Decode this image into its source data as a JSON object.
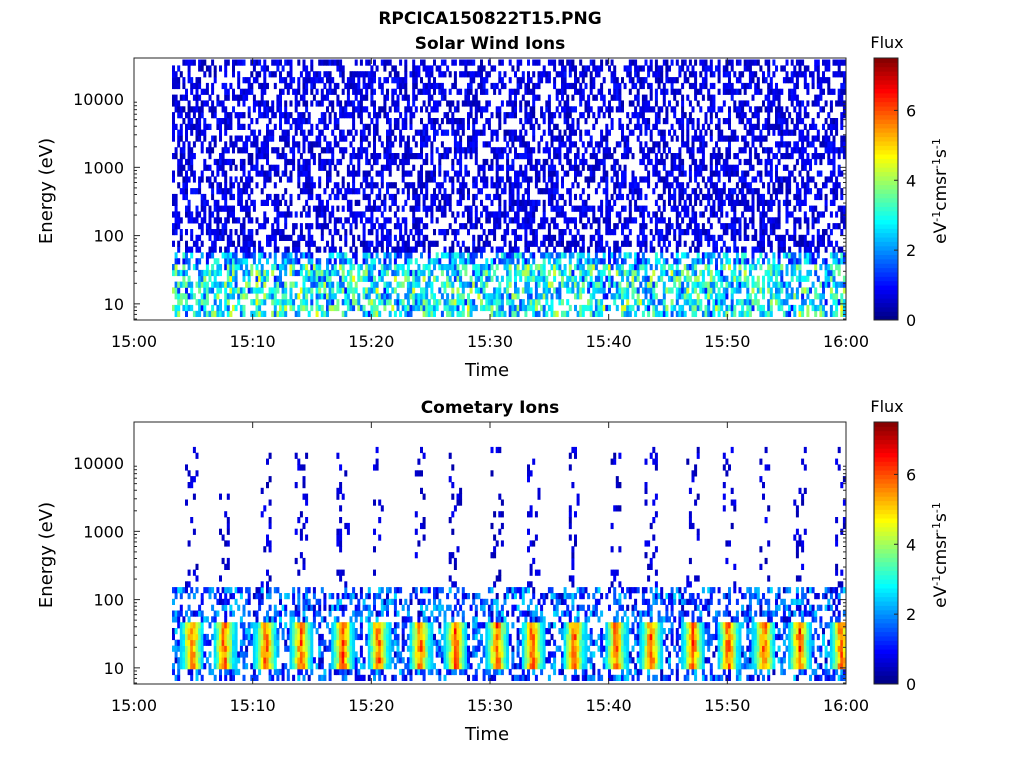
{
  "figure": {
    "title": "RPCICA150822T15.PNG"
  },
  "chart_data": [
    {
      "type": "heatmap",
      "title": "Solar Wind Ions",
      "xlabel": "Time",
      "ylabel": "Energy (eV)",
      "x_ticks": [
        "15:00",
        "15:10",
        "15:20",
        "15:30",
        "15:40",
        "15:50",
        "16:00"
      ],
      "xlim_minutes": [
        0,
        60
      ],
      "y_scale": "log",
      "y_ticks": [
        10,
        100,
        1000,
        10000
      ],
      "y_tick_labels": [
        "10",
        "100",
        "1000",
        "10000"
      ],
      "ylim": [
        5.8,
        40000
      ],
      "data_start_minute": 3.2,
      "colorbar": {
        "title": "Flux",
        "label": "eV-1cm-2sr-1s-1",
        "range": [
          0,
          7.5
        ],
        "ticks": [
          0,
          2,
          4,
          6
        ],
        "colormap": "jet"
      },
      "description_series": {
        "background_level_low_energy": 2.5,
        "background_level_high_energy": 0.8
      }
    },
    {
      "type": "heatmap",
      "title": "Cometary Ions",
      "xlabel": "Time",
      "ylabel": "Energy (eV)",
      "x_ticks": [
        "15:00",
        "15:10",
        "15:20",
        "15:30",
        "15:40",
        "15:50",
        "16:00"
      ],
      "xlim_minutes": [
        0,
        60
      ],
      "y_scale": "log",
      "y_ticks": [
        10,
        100,
        1000,
        10000
      ],
      "y_tick_labels": [
        "10",
        "100",
        "1000",
        "10000"
      ],
      "ylim": [
        5.8,
        40000
      ],
      "data_start_minute": 3.2,
      "colorbar": {
        "title": "Flux",
        "label": "eV-1cm-2sr-1s-1",
        "range": [
          0,
          7.5
        ],
        "ticks": [
          0,
          2,
          4,
          6
        ],
        "colormap": "jet"
      },
      "burst_minutes": [
        4.8,
        7.5,
        11,
        14,
        17.5,
        20.5,
        24,
        27,
        30.5,
        33.5,
        37,
        40.5,
        43.5,
        47,
        50,
        53,
        56,
        59.5
      ],
      "burst_peak_level": 6.2,
      "burst_energy_range_eV": [
        8,
        45
      ]
    }
  ]
}
